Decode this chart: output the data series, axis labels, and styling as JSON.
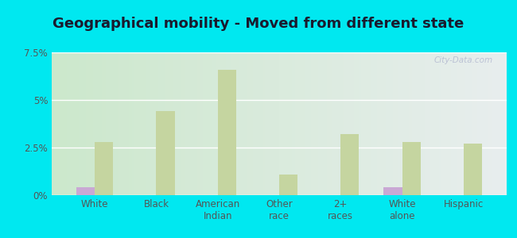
{
  "title": "Geographical mobility - Moved from different state",
  "categories": [
    "White",
    "Black",
    "American\nIndian",
    "Other\nrace",
    "2+\nraces",
    "White\nalone",
    "Hispanic"
  ],
  "pomona_values": [
    0.4,
    0.0,
    0.0,
    0.0,
    0.0,
    0.4,
    0.0
  ],
  "kansas_values": [
    2.8,
    4.4,
    6.6,
    1.1,
    3.2,
    2.8,
    2.7
  ],
  "pomona_color": "#c9a8d4",
  "kansas_color": "#c5d5a0",
  "background_outer": "#00e8f0",
  "background_chart_left": "#cce8cc",
  "background_chart_right": "#e8eeee",
  "ylim": [
    0,
    7.5
  ],
  "yticks": [
    0,
    2.5,
    5.0,
    7.5
  ],
  "ytick_labels": [
    "0%",
    "2.5%",
    "5%",
    "7.5%"
  ],
  "bar_width": 0.3,
  "title_fontsize": 13,
  "tick_fontsize": 8.5,
  "legend_fontsize": 9.5
}
